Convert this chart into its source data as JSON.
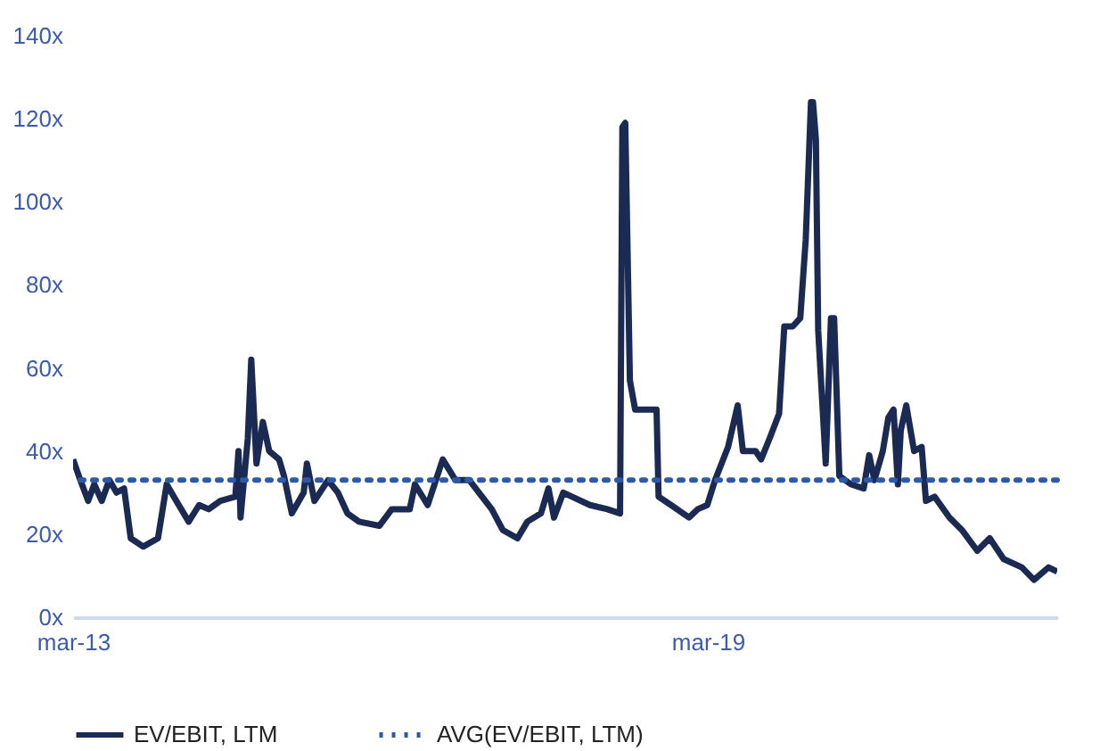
{
  "chart_data": {
    "type": "line",
    "x": [
      "2013-03-02",
      "2013-03-27",
      "2013-04-23",
      "2013-05-14",
      "2013-06-09",
      "2013-07-05",
      "2013-07-30",
      "2013-08-25",
      "2013-09-17",
      "2013-10-30",
      "2013-12-20",
      "2014-01-19",
      "2014-02-21",
      "2014-04-05",
      "2014-05-11",
      "2014-06-13",
      "2014-07-23",
      "2014-09-13",
      "2014-09-24",
      "2014-10-01",
      "2014-10-26",
      "2014-11-07",
      "2014-11-25",
      "2014-12-17",
      "2015-01-08",
      "2015-02-11",
      "2015-02-28",
      "2015-03-27",
      "2015-05-07",
      "2015-05-18",
      "2015-06-13",
      "2015-07-30",
      "2015-09-02",
      "2015-10-05",
      "2015-11-14",
      "2016-01-23",
      "2016-03-06",
      "2016-05-07",
      "2016-05-25",
      "2016-07-08",
      "2016-08-29",
      "2016-10-12",
      "2016-11-29",
      "2017-01-01",
      "2017-02-14",
      "2017-03-24",
      "2017-05-14",
      "2017-06-17",
      "2017-08-03",
      "2017-08-29",
      "2017-09-17",
      "2017-10-19",
      "2017-11-18",
      "2018-01-19",
      "2018-03-20",
      "2018-05-03",
      "2018-05-11",
      "2018-05-21",
      "2018-06-06",
      "2018-06-24",
      "2018-07-23",
      "2018-09-06",
      "2018-09-13",
      "2018-10-26",
      "2018-12-27",
      "2019-01-26",
      "2019-02-28",
      "2019-03-27",
      "2019-05-11",
      "2019-06-13",
      "2019-07-01",
      "2019-08-14",
      "2019-09-02",
      "2019-10-01",
      "2019-11-03",
      "2019-11-21",
      "2019-12-20",
      "2020-01-15",
      "2020-02-03",
      "2020-02-21",
      "2020-02-28",
      "2020-03-09",
      "2020-03-17",
      "2020-04-12",
      "2020-04-30",
      "2020-05-11",
      "2020-05-29",
      "2020-07-08",
      "2020-08-21",
      "2020-09-09",
      "2020-09-27",
      "2020-10-26",
      "2020-11-14",
      "2020-12-02",
      "2020-12-17",
      "2020-12-27",
      "2021-01-15",
      "2021-02-11",
      "2021-03-09",
      "2021-03-24",
      "2021-04-23",
      "2021-06-13",
      "2021-07-26",
      "2021-09-17",
      "2021-10-30",
      "2021-12-17",
      "2022-02-18",
      "2022-04-01",
      "2022-05-21",
      "2022-06-20"
    ],
    "series": [
      {
        "name": "EV/EBIT, LTM",
        "color": "#1b2a52",
        "line_style": "solid",
        "values": [
          38,
          33,
          28,
          32,
          28,
          33,
          30,
          31,
          19,
          17,
          19,
          32,
          28,
          23,
          27,
          26,
          28,
          29,
          40,
          24,
          43,
          62,
          37,
          47,
          40,
          38,
          34,
          25,
          30,
          37,
          28,
          33,
          30,
          25,
          23,
          22,
          26,
          26,
          32,
          27,
          38,
          33,
          33,
          30,
          26,
          21,
          19,
          23,
          25,
          31,
          24,
          30,
          29,
          27,
          26,
          25,
          118,
          119,
          57,
          50,
          50,
          50,
          29,
          27,
          24,
          26,
          27,
          33,
          41,
          51,
          40,
          40,
          38,
          43,
          49,
          70,
          70,
          72,
          91,
          124,
          124,
          115,
          69,
          37,
          72,
          72,
          34,
          32,
          31,
          39,
          33,
          40,
          48,
          50,
          32,
          45,
          51,
          40,
          41,
          28,
          29,
          24,
          21,
          16,
          19,
          14,
          12,
          9,
          12,
          11
        ]
      }
    ],
    "ref_lines": [
      {
        "axis": "y",
        "value": 33,
        "label": "AVG(EV/EBIT, LTM)",
        "color": "#2c5aa8",
        "line_style": "dotted"
      }
    ],
    "xlim": [
      "2013-03-02",
      "2022-06-20"
    ],
    "xticks": [
      {
        "value": "2013-03-02",
        "label": "mar-13"
      },
      {
        "value": "2019-03-02",
        "label": "mar-19"
      }
    ],
    "ylim": [
      0,
      140
    ],
    "yticks": [
      {
        "value": 0,
        "label": "0x"
      },
      {
        "value": 20,
        "label": "20x"
      },
      {
        "value": 40,
        "label": "40x"
      },
      {
        "value": 60,
        "label": "60x"
      },
      {
        "value": 80,
        "label": "80x"
      },
      {
        "value": 100,
        "label": "100x"
      },
      {
        "value": 120,
        "label": "120x"
      },
      {
        "value": 140,
        "label": "140x"
      }
    ],
    "legend": "bottom"
  }
}
